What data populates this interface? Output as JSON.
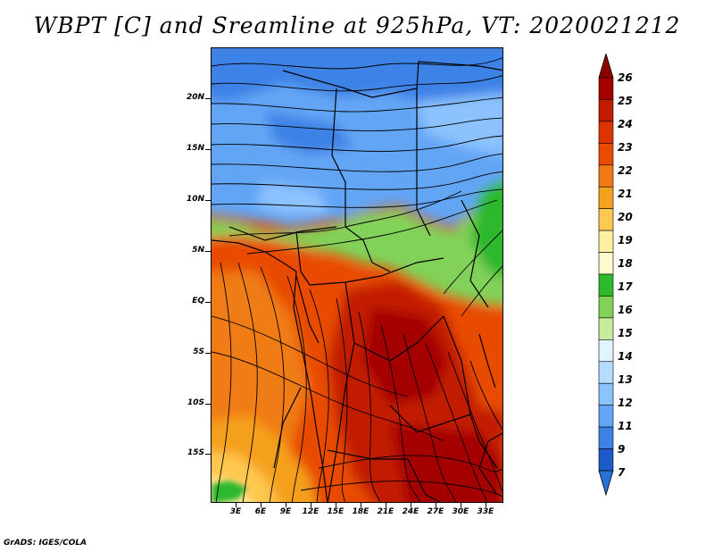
{
  "title": "WBPT [C] and Sreamline at 925hPa, VT: 2020021212",
  "footer": "GrADS: IGES/COLA",
  "map": {
    "lat_labels": [
      "20N",
      "15N",
      "10N",
      "5N",
      "EQ",
      "5S",
      "10S",
      "15S"
    ],
    "lon_labels": [
      "3E",
      "6E",
      "9E",
      "12E",
      "15E",
      "18E",
      "21E",
      "24E",
      "27E",
      "30E",
      "33E"
    ],
    "variable": "Wet-bulb potential temperature",
    "units": "C",
    "level": "925hPa",
    "overlay": "streamlines"
  },
  "colorbar": {
    "labels": [
      "26",
      "25",
      "24",
      "23",
      "22",
      "21",
      "20",
      "19",
      "18",
      "17",
      "16",
      "15",
      "14",
      "13",
      "12",
      "11",
      "9",
      "7"
    ],
    "colors": [
      "#a50000",
      "#c21b00",
      "#dc3200",
      "#e84c00",
      "#f07b14",
      "#f5a01e",
      "#ffc850",
      "#fff0a0",
      "#fffacd",
      "#2eb82e",
      "#82d25a",
      "#c8eba0",
      "#e0f5ff",
      "#b4dcff",
      "#8cc3ff",
      "#64a5f5",
      "#3c82e6",
      "#1e5ac8"
    ],
    "lower_arrow_color": "#2870d8",
    "upper_arrow_color": "#8c0000"
  }
}
